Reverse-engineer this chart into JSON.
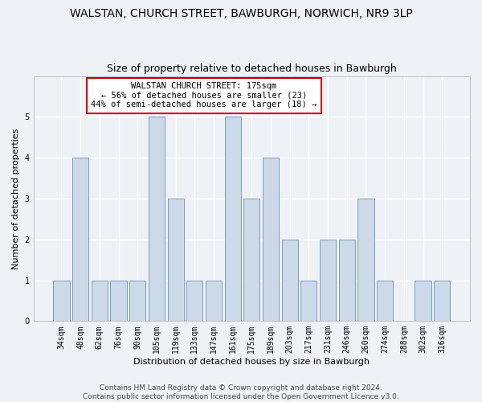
{
  "title": "WALSTAN, CHURCH STREET, BAWBURGH, NORWICH, NR9 3LP",
  "subtitle": "Size of property relative to detached houses in Bawburgh",
  "xlabel": "Distribution of detached houses by size in Bawburgh",
  "ylabel": "Number of detached properties",
  "categories": [
    "34sqm",
    "48sqm",
    "62sqm",
    "76sqm",
    "90sqm",
    "105sqm",
    "119sqm",
    "133sqm",
    "147sqm",
    "161sqm",
    "175sqm",
    "189sqm",
    "203sqm",
    "217sqm",
    "231sqm",
    "246sqm",
    "260sqm",
    "274sqm",
    "288sqm",
    "302sqm",
    "316sqm"
  ],
  "values": [
    1,
    4,
    1,
    1,
    1,
    5,
    3,
    1,
    1,
    5,
    3,
    4,
    2,
    1,
    2,
    2,
    3,
    1,
    0,
    1,
    1
  ],
  "highlight_index": 10,
  "bar_color": "#ccd9e8",
  "bar_edge_color": "#7a9cbf",
  "annotation_text": "WALSTAN CHURCH STREET: 175sqm\n← 56% of detached houses are smaller (23)\n44% of semi-detached houses are larger (18) →",
  "annotation_box_color": "#ffffff",
  "annotation_box_edge_color": "#cc0000",
  "footnote": "Contains HM Land Registry data © Crown copyright and database right 2024.\nContains public sector information licensed under the Open Government Licence v3.0.",
  "ylim": [
    0,
    6
  ],
  "yticks": [
    0,
    1,
    2,
    3,
    4,
    5,
    6
  ],
  "background_color": "#eef2f7",
  "grid_color": "#ffffff",
  "title_fontsize": 10,
  "subtitle_fontsize": 9,
  "axis_label_fontsize": 8,
  "tick_fontsize": 7,
  "annotation_fontsize": 7.5,
  "footnote_fontsize": 6.5
}
